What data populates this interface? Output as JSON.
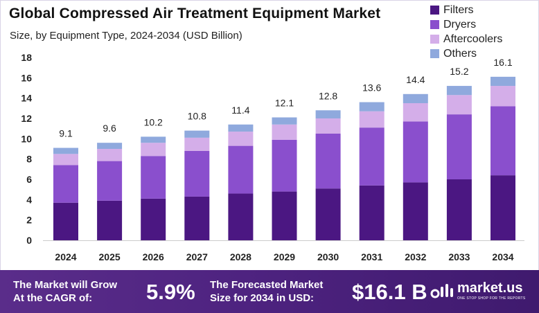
{
  "title": "Global Compressed Air Treatment Equipment Market",
  "subtitle": "Size, by Equipment Type, 2024-2034 (USD Billion)",
  "colors": {
    "filters": "#4b1782",
    "dryers": "#8a4fcd",
    "aftercoolers": "#d4aee9",
    "others": "#8fa9dd"
  },
  "chart_data": {
    "type": "bar",
    "stacked": true,
    "categories": [
      "2024",
      "2025",
      "2026",
      "2027",
      "2028",
      "2029",
      "2030",
      "2031",
      "2032",
      "2033",
      "2034"
    ],
    "series": [
      {
        "name": "Filters",
        "values": [
          3.7,
          3.9,
          4.1,
          4.3,
          4.6,
          4.8,
          5.1,
          5.4,
          5.7,
          6.0,
          6.4
        ]
      },
      {
        "name": "Dryers",
        "values": [
          3.7,
          3.9,
          4.2,
          4.5,
          4.7,
          5.1,
          5.4,
          5.7,
          6.0,
          6.4,
          6.8
        ]
      },
      {
        "name": "Aftercoolers",
        "values": [
          1.1,
          1.2,
          1.3,
          1.3,
          1.4,
          1.5,
          1.5,
          1.6,
          1.8,
          1.9,
          2.0
        ]
      },
      {
        "name": "Others",
        "values": [
          0.6,
          0.6,
          0.6,
          0.7,
          0.7,
          0.7,
          0.8,
          0.9,
          0.9,
          0.9,
          0.9
        ]
      }
    ],
    "totals": [
      "9.1",
      "9.6",
      "10.2",
      "10.8",
      "11.4",
      "12.1",
      "12.8",
      "13.6",
      "14.4",
      "15.2",
      "16.1"
    ],
    "yticks": [
      0,
      2,
      4,
      6,
      8,
      10,
      12,
      14,
      16,
      18
    ],
    "ylim": [
      0,
      18
    ],
    "grid": false,
    "legend_position": "top-right"
  },
  "footer": {
    "cagr_label_line1": "The Market will Grow",
    "cagr_label_line2": "At the CAGR of:",
    "cagr_value": "5.9%",
    "forecast_label_line1": "The Forecasted Market",
    "forecast_label_line2": "Size for 2034 in USD:",
    "forecast_value": "$16.1 B",
    "brand_name": "market.us",
    "brand_tagline": "ONE STOP SHOP FOR THE REPORTS"
  }
}
